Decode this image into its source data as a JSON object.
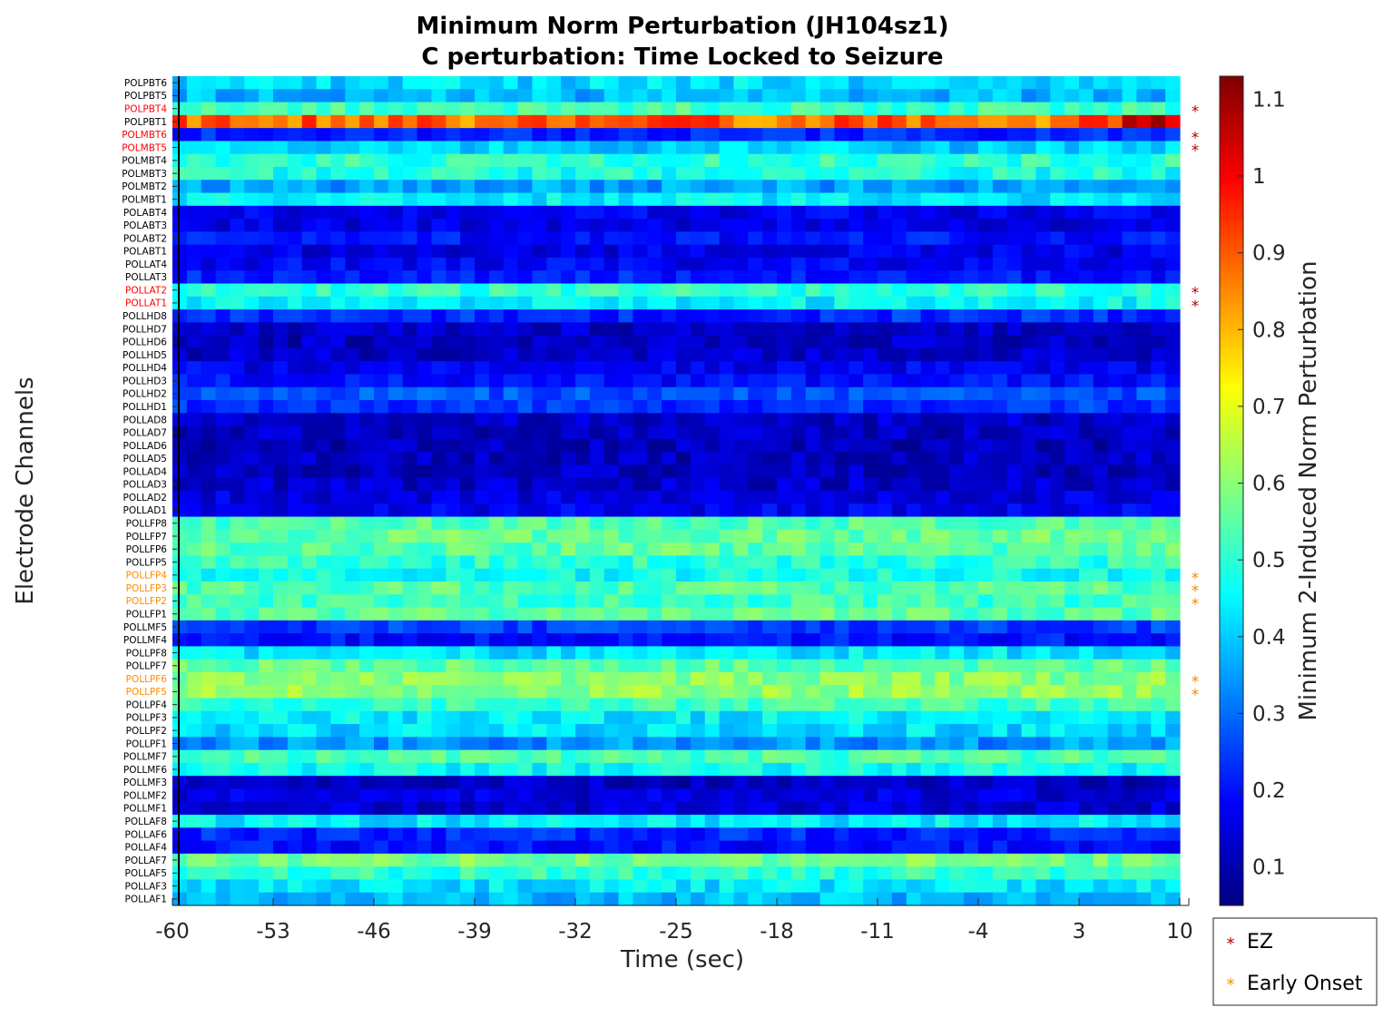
{
  "chart_data": {
    "type": "heatmap",
    "title": "Minimum Norm Perturbation (JH104sz1)",
    "subtitle": "C perturbation:  Time Locked to Seizure",
    "xlabel": "Time (sec)",
    "ylabel": "Electrode Channels",
    "colorbar_label": "Minimum 2-Induced Norm Perturbation",
    "xlim": [
      -60,
      10
    ],
    "x_ticks": [
      "-60",
      "-53",
      "-46",
      "-39",
      "-32",
      "-25",
      "-18",
      "-11",
      "-4",
      "3",
      "10"
    ],
    "n_time_windows": 70,
    "colormap": "jet",
    "clim": [
      0.05,
      1.13
    ],
    "colorbar_ticks": [
      "0.1",
      "0.2",
      "0.3",
      "0.4",
      "0.5",
      "0.6",
      "0.7",
      "0.8",
      "0.9",
      "1",
      "1.1"
    ],
    "onset_marker_x": -60,
    "channels": [
      {
        "name": "POLPBT6",
        "level": 0.42,
        "marker": ""
      },
      {
        "name": "POLPBT5",
        "level": 0.38,
        "marker": ""
      },
      {
        "name": "POLPBT4",
        "level": 0.52,
        "marker": "EZ"
      },
      {
        "name": "POLPBT1",
        "level": 0.88,
        "marker": ""
      },
      {
        "name": "POLMBT6",
        "level": 0.22,
        "marker": "EZ"
      },
      {
        "name": "POLMBT5",
        "level": 0.4,
        "marker": "EZ"
      },
      {
        "name": "POLMBT4",
        "level": 0.5,
        "marker": ""
      },
      {
        "name": "POLMBT3",
        "level": 0.48,
        "marker": ""
      },
      {
        "name": "POLMBT2",
        "level": 0.36,
        "marker": ""
      },
      {
        "name": "POLMBT1",
        "level": 0.44,
        "marker": ""
      },
      {
        "name": "POLABT4",
        "level": 0.17,
        "marker": ""
      },
      {
        "name": "POLABT3",
        "level": 0.16,
        "marker": ""
      },
      {
        "name": "POLABT2",
        "level": 0.2,
        "marker": ""
      },
      {
        "name": "POLABT1",
        "level": 0.16,
        "marker": ""
      },
      {
        "name": "POLLAT4",
        "level": 0.18,
        "marker": ""
      },
      {
        "name": "POLLAT3",
        "level": 0.21,
        "marker": ""
      },
      {
        "name": "POLLAT2",
        "level": 0.5,
        "marker": "EZ"
      },
      {
        "name": "POLLAT1",
        "level": 0.45,
        "marker": "EZ"
      },
      {
        "name": "POLLHD8",
        "level": 0.23,
        "marker": ""
      },
      {
        "name": "POLLHD7",
        "level": 0.13,
        "marker": ""
      },
      {
        "name": "POLLHD6",
        "level": 0.12,
        "marker": ""
      },
      {
        "name": "POLLHD5",
        "level": 0.13,
        "marker": ""
      },
      {
        "name": "POLLHD4",
        "level": 0.17,
        "marker": ""
      },
      {
        "name": "POLLHD3",
        "level": 0.2,
        "marker": ""
      },
      {
        "name": "POLLHD2",
        "level": 0.27,
        "marker": ""
      },
      {
        "name": "POLLHD1",
        "level": 0.24,
        "marker": ""
      },
      {
        "name": "POLLAD8",
        "level": 0.13,
        "marker": ""
      },
      {
        "name": "POLLAD7",
        "level": 0.12,
        "marker": ""
      },
      {
        "name": "POLLAD6",
        "level": 0.11,
        "marker": ""
      },
      {
        "name": "POLLAD5",
        "level": 0.12,
        "marker": ""
      },
      {
        "name": "POLLAD4",
        "level": 0.12,
        "marker": ""
      },
      {
        "name": "POLLAD3",
        "level": 0.13,
        "marker": ""
      },
      {
        "name": "POLLAD2",
        "level": 0.15,
        "marker": ""
      },
      {
        "name": "POLLAD1",
        "level": 0.17,
        "marker": ""
      },
      {
        "name": "POLLFP8",
        "level": 0.54,
        "marker": ""
      },
      {
        "name": "POLLFP7",
        "level": 0.56,
        "marker": ""
      },
      {
        "name": "POLLFP6",
        "level": 0.55,
        "marker": ""
      },
      {
        "name": "POLLFP5",
        "level": 0.5,
        "marker": ""
      },
      {
        "name": "POLLFP4",
        "level": 0.47,
        "marker": "Early Onset"
      },
      {
        "name": "POLLFP3",
        "level": 0.54,
        "marker": "Early Onset"
      },
      {
        "name": "POLLFP2",
        "level": 0.52,
        "marker": "Early Onset"
      },
      {
        "name": "POLLFP1",
        "level": 0.55,
        "marker": ""
      },
      {
        "name": "POLLMF5",
        "level": 0.25,
        "marker": ""
      },
      {
        "name": "POLLMF4",
        "level": 0.2,
        "marker": ""
      },
      {
        "name": "POLLPF8",
        "level": 0.43,
        "marker": ""
      },
      {
        "name": "POLLPF7",
        "level": 0.55,
        "marker": ""
      },
      {
        "name": "POLLPF6",
        "level": 0.6,
        "marker": "Early Onset"
      },
      {
        "name": "POLLPF5",
        "level": 0.61,
        "marker": "Early Onset"
      },
      {
        "name": "POLLPF4",
        "level": 0.52,
        "marker": ""
      },
      {
        "name": "POLLPF3",
        "level": 0.44,
        "marker": ""
      },
      {
        "name": "POLLPF2",
        "level": 0.42,
        "marker": ""
      },
      {
        "name": "POLLPF1",
        "level": 0.34,
        "marker": ""
      },
      {
        "name": "POLLMF7",
        "level": 0.53,
        "marker": ""
      },
      {
        "name": "POLLMF6",
        "level": 0.46,
        "marker": ""
      },
      {
        "name": "POLLMF3",
        "level": 0.12,
        "marker": ""
      },
      {
        "name": "POLLMF2",
        "level": 0.15,
        "marker": ""
      },
      {
        "name": "POLLMF1",
        "level": 0.14,
        "marker": ""
      },
      {
        "name": "POLLAF8",
        "level": 0.44,
        "marker": ""
      },
      {
        "name": "POLLAF6",
        "level": 0.22,
        "marker": ""
      },
      {
        "name": "POLLAF4",
        "level": 0.2,
        "marker": ""
      },
      {
        "name": "POLLAF7",
        "level": 0.58,
        "marker": ""
      },
      {
        "name": "POLLAF5",
        "level": 0.5,
        "marker": ""
      },
      {
        "name": "POLLAF3",
        "level": 0.43,
        "marker": ""
      },
      {
        "name": "POLLAF1",
        "level": 0.38,
        "marker": ""
      }
    ],
    "legend": {
      "placement": "bottom-right-outside",
      "entries": [
        {
          "label": "EZ",
          "marker": "*",
          "color": "#b30000"
        },
        {
          "label": "Early Onset",
          "marker": "*",
          "color": "#f08c00"
        }
      ]
    },
    "label_colors": {
      "EZ": "#ff0000",
      "Early Onset": "#ff8c00",
      "none": "#000000"
    }
  }
}
